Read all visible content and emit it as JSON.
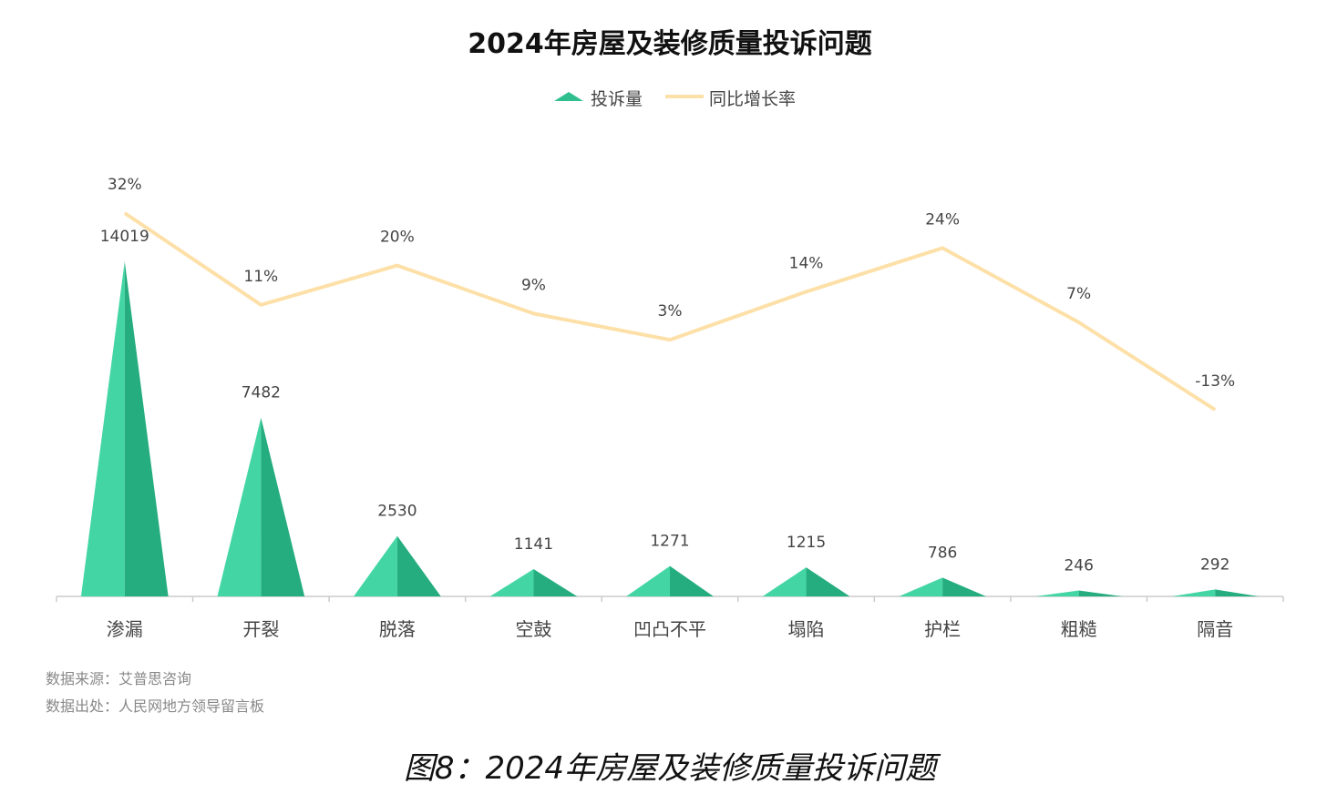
{
  "chart_data": {
    "type": "bar",
    "title": "2024年房屋及装修质量投诉问题",
    "categories": [
      "渗漏",
      "开裂",
      "脱落",
      "空鼓",
      "凹凸不平",
      "塌陷",
      "护栏",
      "粗糙",
      "隔音"
    ],
    "series": [
      {
        "name": "投诉量",
        "type": "bar",
        "values": [
          14019,
          7482,
          2530,
          1141,
          1271,
          1215,
          786,
          246,
          292
        ]
      },
      {
        "name": "同比增长率",
        "type": "line",
        "values": [
          32,
          11,
          20,
          9,
          3,
          14,
          24,
          7,
          -13
        ],
        "labels": [
          "32%",
          "11%",
          "20%",
          "9%",
          "3%",
          "14%",
          "24%",
          "7%",
          "-13%"
        ]
      }
    ],
    "legend_position": "top-center",
    "grid": false,
    "colors": {
      "bar_light": "#43d6a4",
      "bar_dark": "#25ad80",
      "line": "#fde0a8",
      "axis": "#cccccc"
    }
  },
  "sources": {
    "source_line": "数据来源：艾普思咨询",
    "origin_line": "数据出处：人民网地方领导留言板"
  },
  "caption": "图8：2024年房屋及装修质量投诉问题"
}
